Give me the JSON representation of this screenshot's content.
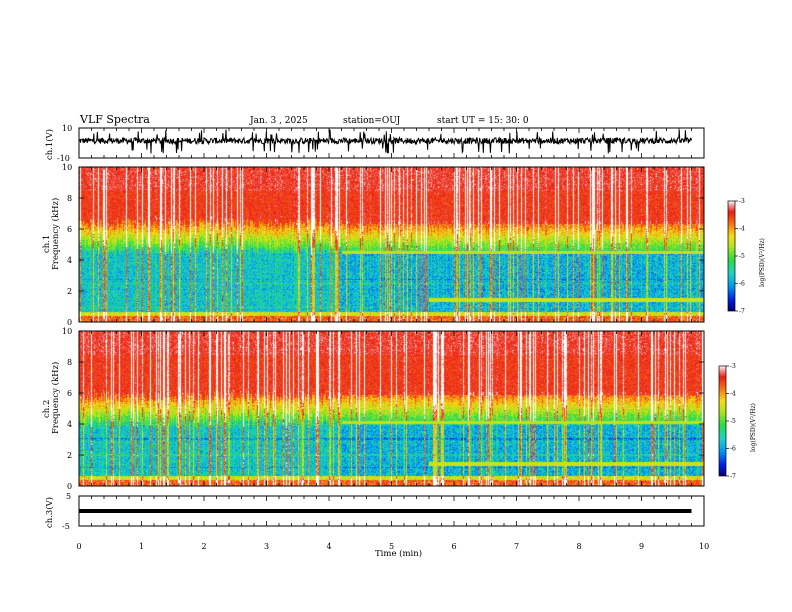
{
  "header": {
    "title": "VLF Spectra",
    "date": "Jan. 3 , 2025",
    "station": "station=OUJ",
    "start": "start  UT =  15: 30: 0"
  },
  "chart_data": [
    {
      "type": "line",
      "panel": "ch1-waveform",
      "ylabel": "ch.1(V)",
      "ylim": [
        -10,
        10
      ],
      "yticks": [
        "10",
        "-10"
      ],
      "xlim": [
        0,
        10
      ],
      "description_values": {
        "baseline_v": 1.5,
        "noise_range_v": [
          -1.5,
          4.5
        ],
        "spike_min_v": -7,
        "spike_max_v": 9
      }
    },
    {
      "type": "heatmap",
      "panel": "ch1-spectrogram",
      "ylabel_top": "ch.1",
      "ylabel": "Frequency (kHz)",
      "xlim": [
        0,
        10
      ],
      "ylim": [
        0,
        10
      ],
      "yticks": [
        "0",
        "2",
        "4",
        "6",
        "8",
        "10"
      ],
      "colorbar": {
        "label": "log(PSD)(V²/Hz)",
        "range": [
          -7,
          -3
        ],
        "ticks": [
          "-3",
          "-4",
          "-5",
          "-6",
          "-7"
        ]
      },
      "features": {
        "quiet_band_khz": [
          0.6,
          4.6
        ],
        "band_top_after_4min_khz": 4.5,
        "tone_khz_after_5_6min": 1.4
      }
    },
    {
      "type": "heatmap",
      "panel": "ch2-spectrogram",
      "ylabel_top": "ch.2",
      "ylabel": "Frequency (kHz)",
      "xlim": [
        0,
        10
      ],
      "ylim": [
        0,
        10
      ],
      "yticks": [
        "0",
        "2",
        "4",
        "6",
        "8",
        "10"
      ],
      "colorbar": {
        "label": "log(PSD)(V²/Hz)",
        "range": [
          -7,
          -3
        ],
        "ticks": [
          "-3",
          "-4",
          "-5",
          "-6",
          "-7"
        ]
      },
      "features": {
        "quiet_band_khz": [
          0.6,
          4.0
        ],
        "band_top_after_4min_khz": 4.1,
        "tone_khz_after_5_6min": 1.4
      }
    },
    {
      "type": "line",
      "panel": "ch3-waveform",
      "ylabel": "ch.3(V)",
      "ylim": [
        -5,
        5
      ],
      "yticks": [
        "5",
        "0",
        "-5"
      ],
      "xlim": [
        0,
        10
      ],
      "xlabel": "Time (min)",
      "xticks": [
        "0",
        "1",
        "2",
        "3",
        "4",
        "5",
        "6",
        "7",
        "8",
        "9",
        "10"
      ],
      "description_values": {
        "level_v": 0.0,
        "trace_end_min": 9.8
      }
    }
  ],
  "colors": {
    "background": "#ffffff",
    "axes": "#000000",
    "palette_low": "#000080",
    "palette_mid": "#20c0d0",
    "palette_green": "#20e040",
    "palette_yellow": "#f0e020",
    "palette_high": "#f02010",
    "palette_top": "#ffffff"
  }
}
